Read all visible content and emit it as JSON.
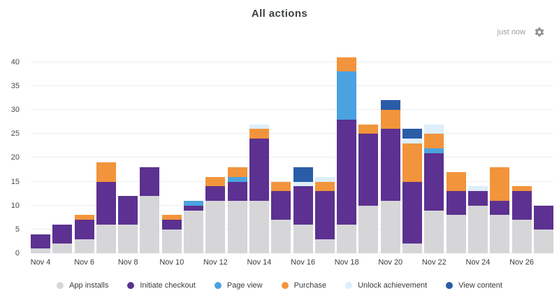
{
  "header": {
    "title": "All actions",
    "updated": "just now",
    "gear_icon": "settings-gear"
  },
  "colors": {
    "gridline": "#ededf0",
    "app_installs": "#d6d6d9",
    "initiate_checkout": "#5c3191",
    "page_view": "#4ba2e0",
    "purchase": "#f2943b",
    "unlock_achievement": "#dceffb",
    "view_content": "#2a5ca8"
  },
  "chart_data": {
    "type": "bar",
    "stacked": true,
    "title": "All actions",
    "xlabel": "",
    "ylabel": "",
    "ylim": [
      0,
      42
    ],
    "yticks": [
      0,
      5,
      10,
      15,
      20,
      25,
      30,
      35,
      40
    ],
    "grid": true,
    "legend_position": "bottom",
    "x_tick_step": 2,
    "categories": [
      "Nov 4",
      "Nov 5",
      "Nov 6",
      "Nov 7",
      "Nov 8",
      "Nov 9",
      "Nov 10",
      "Nov 11",
      "Nov 12",
      "Nov 13",
      "Nov 14",
      "Nov 15",
      "Nov 16",
      "Nov 17",
      "Nov 18",
      "Nov 19",
      "Nov 20",
      "Nov 21",
      "Nov 22",
      "Nov 23",
      "Nov 24",
      "Nov 25",
      "Nov 26",
      "Nov 27"
    ],
    "series": [
      {
        "name": "App installs",
        "color": "#d6d6d9",
        "values": [
          1,
          2,
          3,
          6,
          6,
          12,
          5,
          9,
          11,
          11,
          11,
          7,
          6,
          3,
          6,
          10,
          11,
          2,
          9,
          8,
          10,
          8,
          7,
          5
        ]
      },
      {
        "name": "Initiate checkout",
        "color": "#5c3191",
        "values": [
          3,
          4,
          4,
          9,
          6,
          6,
          2,
          1,
          3,
          4,
          13,
          6,
          8,
          10,
          22,
          15,
          15,
          13,
          12,
          5,
          3,
          3,
          6,
          5
        ]
      },
      {
        "name": "Page view",
        "color": "#4ba2e0",
        "values": [
          0,
          0,
          0,
          0,
          0,
          0,
          0,
          1,
          0,
          1,
          0,
          0,
          0,
          0,
          10,
          0,
          0,
          0,
          1,
          0,
          0,
          0,
          0,
          0
        ]
      },
      {
        "name": "Purchase",
        "color": "#f2943b",
        "values": [
          0,
          0,
          1,
          4,
          0,
          0,
          1,
          0,
          2,
          2,
          2,
          2,
          0,
          2,
          3,
          2,
          4,
          8,
          3,
          4,
          0,
          7,
          1,
          0
        ]
      },
      {
        "name": "Unlock achievement",
        "color": "#dceffb",
        "values": [
          0,
          0,
          0,
          0,
          0,
          0,
          0,
          0,
          0,
          0,
          1,
          0,
          1,
          1,
          0,
          0,
          0,
          1,
          2,
          0,
          1,
          0,
          0,
          0
        ]
      },
      {
        "name": "View content",
        "color": "#2a5ca8",
        "values": [
          0,
          0,
          0,
          0,
          0,
          0,
          0,
          0,
          0,
          0,
          0,
          0,
          3,
          0,
          0,
          0,
          2,
          2,
          0,
          0,
          0,
          0,
          0,
          0
        ]
      }
    ]
  }
}
